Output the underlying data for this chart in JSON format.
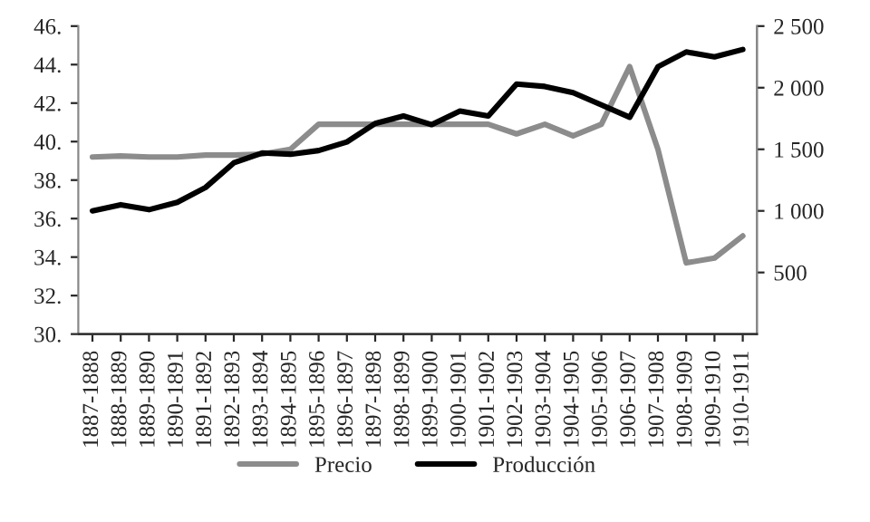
{
  "chart_data": {
    "type": "line",
    "categories": [
      "1887-1888",
      "1888-1889",
      "1889-1890",
      "1890-1891",
      "1891-1892",
      "1892-1893",
      "1893-1894",
      "1894-1895",
      "1895-1896",
      "1896-1897",
      "1897-1898",
      "1898-1899",
      "1899-1900",
      "1900-1901",
      "1901-1902",
      "1902-1903",
      "1903-1904",
      "1904-1905",
      "1905-1906",
      "1906-1907",
      "1907-1908",
      "1908-1909",
      "1909-1910",
      "1910-1911"
    ],
    "series": [
      {
        "name": "Precio",
        "color": "#8c8c8c",
        "values": [
          39.2,
          39.25,
          39.2,
          39.2,
          39.3,
          39.3,
          39.35,
          39.6,
          40.9,
          40.9,
          40.9,
          40.9,
          40.9,
          40.9,
          40.9,
          40.4,
          40.9,
          40.3,
          40.9,
          43.9,
          39.6,
          33.7,
          33.95,
          35.1
        ]
      },
      {
        "name": "Producción",
        "color": "#000000",
        "axis": "y2",
        "values": [
          1000,
          1050,
          1010,
          1070,
          1190,
          1390,
          1470,
          1460,
          1490,
          1560,
          1710,
          1770,
          1700,
          1810,
          1770,
          2030,
          2010,
          1960,
          1860,
          1760,
          2170,
          2290,
          2250,
          2310
        ]
      }
    ],
    "ylim": [
      30,
      46
    ],
    "yticks": [
      {
        "value": 30,
        "label": "30."
      },
      {
        "value": 32,
        "label": "32."
      },
      {
        "value": 34,
        "label": "34."
      },
      {
        "value": 36,
        "label": "36."
      },
      {
        "value": 38,
        "label": "38."
      },
      {
        "value": 40,
        "label": "40."
      },
      {
        "value": 42,
        "label": "42."
      },
      {
        "value": 44,
        "label": "44."
      },
      {
        "value": 46,
        "label": "46."
      }
    ],
    "y2lim": [
      0,
      2500
    ],
    "y2ticks": [
      500,
      {
        "value": 1000,
        "label": "1 000"
      },
      {
        "value": 1500,
        "label": "1 500"
      },
      {
        "value": 2000,
        "label": "2 000"
      },
      {
        "value": 2500,
        "label": "2 500"
      }
    ],
    "grid": false,
    "legend": "bottom",
    "marker": "none",
    "line_style": "solid"
  }
}
